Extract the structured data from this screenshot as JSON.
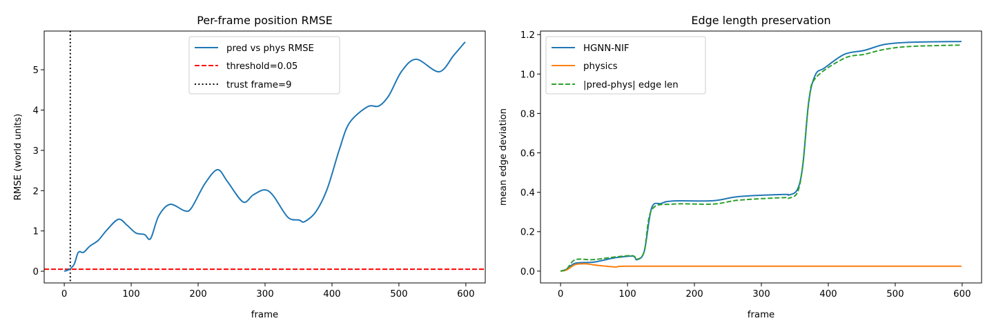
{
  "chart_data": [
    {
      "type": "line",
      "title": "Per-frame position RMSE",
      "xlabel": "frame",
      "ylabel": "RMSE (world units)",
      "xlim": [
        -30,
        629
      ],
      "ylim": [
        -0.29,
        5.96
      ],
      "xticks": [
        0,
        100,
        200,
        300,
        400,
        500,
        600
      ],
      "yticks": [
        0,
        1,
        2,
        3,
        4,
        5
      ],
      "grid": false,
      "legend_placement": "upper-center",
      "series": [
        {
          "name": "pred vs phys RMSE",
          "color": "#1f77b4",
          "style": "solid",
          "x": [
            0,
            8,
            15,
            21,
            29,
            38,
            51,
            64,
            81,
            94,
            107,
            120,
            129,
            141,
            158,
            180,
            190,
            210,
            229,
            244,
            267,
            282,
            299,
            312,
            334,
            351,
            359,
            376,
            393,
            411,
            426,
            453,
            470,
            485,
            504,
            526,
            560,
            582,
            599
          ],
          "y": [
            0.0,
            0.05,
            0.18,
            0.47,
            0.47,
            0.62,
            0.77,
            1.03,
            1.29,
            1.14,
            0.95,
            0.91,
            0.81,
            1.37,
            1.66,
            1.5,
            1.57,
            2.17,
            2.52,
            2.22,
            1.72,
            1.89,
            2.02,
            1.88,
            1.34,
            1.27,
            1.23,
            1.48,
            2.05,
            3.02,
            3.68,
            4.08,
            4.1,
            4.36,
            4.96,
            5.26,
            4.95,
            5.36,
            5.69
          ]
        }
      ],
      "hlines": [
        {
          "name": "threshold=0.05",
          "y": 0.05,
          "color": "#ff0000",
          "style": "dashed"
        }
      ],
      "vlines": [
        {
          "name": "trust frame=9",
          "x": 9,
          "color": "#000000",
          "style": "dotted"
        }
      ]
    },
    {
      "type": "line",
      "title": "Edge length preservation",
      "xlabel": "frame",
      "ylabel": "mean edge deviation",
      "xlim": [
        -30,
        629
      ],
      "ylim": [
        -0.06,
        1.218
      ],
      "xticks": [
        0,
        100,
        200,
        300,
        400,
        500,
        600
      ],
      "yticks": [
        0.0,
        0.2,
        0.4,
        0.6,
        0.8,
        1.0,
        1.2
      ],
      "ytick_labels": [
        "0.0",
        "0.2",
        "0.4",
        "0.6",
        "0.8",
        "1.0",
        "1.2"
      ],
      "grid": false,
      "legend_placement": "upper-left",
      "series": [
        {
          "name": "HGNN-NIF",
          "color": "#1f77b4",
          "style": "solid",
          "x": [
            0,
            9,
            22,
            48,
            65,
            82,
            108,
            114,
            125,
            136,
            150,
            168,
            228,
            266,
            334,
            341,
            354,
            362,
            371,
            381,
            394,
            424,
            454,
            484,
            523,
            599
          ],
          "y": [
            0,
            0.01,
            0.04,
            0.045,
            0.056,
            0.068,
            0.076,
            0.058,
            0.1,
            0.32,
            0.343,
            0.356,
            0.357,
            0.378,
            0.389,
            0.386,
            0.415,
            0.54,
            0.866,
            0.998,
            1.03,
            1.1,
            1.12,
            1.15,
            1.161,
            1.165
          ]
        },
        {
          "name": "physics",
          "color": "#ff7f0e",
          "style": "solid",
          "x": [
            0,
            9,
            22,
            37,
            56,
            82,
            99,
            223,
            599
          ],
          "y": [
            0,
            0.006,
            0.033,
            0.037,
            0.029,
            0.021,
            0.025,
            0.025,
            0.025
          ]
        },
        {
          "name": "|pred-phys| edge len",
          "color": "#2ca02c",
          "style": "dashed",
          "x": [
            0,
            9,
            22,
            48,
            82,
            108,
            114,
            125,
            136,
            168,
            228,
            266,
            334,
            341,
            354,
            362,
            371,
            381,
            424,
            454,
            484,
            523,
            599
          ],
          "y": [
            0,
            0.01,
            0.058,
            0.058,
            0.072,
            0.078,
            0.06,
            0.1,
            0.31,
            0.34,
            0.34,
            0.36,
            0.373,
            0.37,
            0.4,
            0.54,
            0.86,
            0.98,
            1.08,
            1.1,
            1.125,
            1.14,
            1.147
          ]
        }
      ]
    }
  ]
}
